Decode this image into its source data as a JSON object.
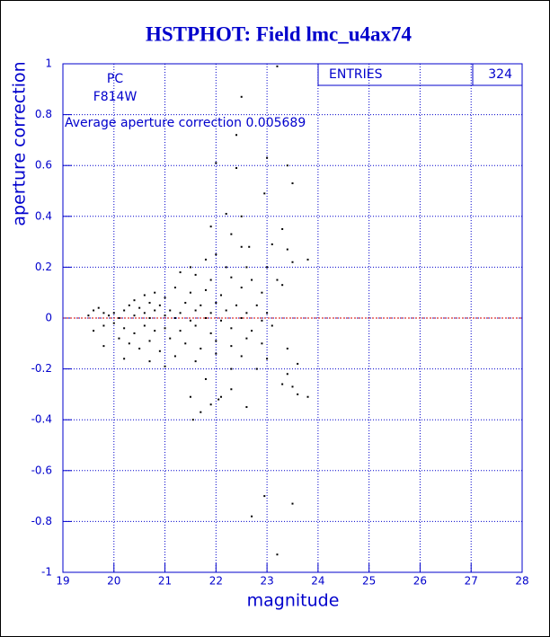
{
  "chart_data": {
    "type": "scatter",
    "title": "HSTPHOT: Field lmc_u4ax74",
    "xlabel": "magnitude",
    "ylabel": "aperture correction",
    "annotations": [
      "PC",
      "F814W",
      "Average aperture correction 0.005689"
    ],
    "stats": {
      "label": "ENTRIES",
      "value": 324
    },
    "xlim": [
      19,
      28
    ],
    "ylim": [
      -1,
      1
    ],
    "xticks": [
      19,
      20,
      21,
      22,
      23,
      24,
      25,
      26,
      27,
      28
    ],
    "yticks": [
      -1,
      -0.8,
      -0.6,
      -0.4,
      -0.2,
      0,
      0.2,
      0.4,
      0.6,
      0.8,
      1
    ],
    "grid": true,
    "series": [
      {
        "color": "#000000",
        "x": [
          23.2,
          22.5,
          22.4,
          23.0,
          22.0,
          22.4,
          23.4,
          23.5,
          22.95,
          22.2,
          22.5,
          21.9,
          22.3,
          23.3,
          23.4,
          22.5,
          22.65,
          23.1,
          23.8,
          23.5,
          21.5,
          21.8,
          22.0,
          22.2,
          22.6,
          23.0,
          21.3,
          21.6,
          21.9,
          22.3,
          22.7,
          23.2,
          21.2,
          21.5,
          21.8,
          22.1,
          22.5,
          22.9,
          23.3,
          20.6,
          20.8,
          21.0,
          20.4,
          20.7,
          21.4,
          21.7,
          22.0,
          22.4,
          22.8,
          19.6,
          19.8,
          19.7,
          20.0,
          20.2,
          20.3,
          20.5,
          20.6,
          20.8,
          20.9,
          21.1,
          21.3,
          21.6,
          21.9,
          22.2,
          22.6,
          23.0,
          19.5,
          19.9,
          20.1,
          20.4,
          20.7,
          21.0,
          21.2,
          21.5,
          21.8,
          22.1,
          22.5,
          22.9,
          19.6,
          19.8,
          20.0,
          20.2,
          20.4,
          20.6,
          20.8,
          21.0,
          21.3,
          21.6,
          21.9,
          22.3,
          22.7,
          23.1,
          19.8,
          20.1,
          20.3,
          20.5,
          20.7,
          20.9,
          21.1,
          21.4,
          21.7,
          22.0,
          22.3,
          22.6,
          22.9,
          20.2,
          20.7,
          21.2,
          21.6,
          22.0,
          22.5,
          23.0,
          23.4,
          23.6,
          21.0,
          22.8,
          22.3,
          22.3,
          21.8,
          23.3,
          23.5,
          23.6,
          23.8,
          23.4,
          21.5,
          22.1,
          22.05,
          21.7,
          21.9,
          22.6,
          21.55,
          22.95,
          23.5,
          22.7,
          23.2
        ],
        "values": [
          0.99,
          0.87,
          0.72,
          0.63,
          0.61,
          0.59,
          0.6,
          0.53,
          0.49,
          0.41,
          0.4,
          0.36,
          0.33,
          0.35,
          0.27,
          0.28,
          0.28,
          0.29,
          0.23,
          0.22,
          0.2,
          0.23,
          0.25,
          0.2,
          0.2,
          0.2,
          0.18,
          0.17,
          0.15,
          0.16,
          0.15,
          0.15,
          0.12,
          0.1,
          0.11,
          0.09,
          0.12,
          0.1,
          0.13,
          0.09,
          0.1,
          0.08,
          0.07,
          0.06,
          0.06,
          0.05,
          0.06,
          0.05,
          0.05,
          0.03,
          0.02,
          0.04,
          0.02,
          0.03,
          0.05,
          0.04,
          0.02,
          0.03,
          0.05,
          0.03,
          0.02,
          0.03,
          0.02,
          0.03,
          0.02,
          0.02,
          0.01,
          0.01,
          0.0,
          0.01,
          0.0,
          0.01,
          0.0,
          -0.01,
          0.0,
          -0.01,
          0.0,
          -0.01,
          -0.05,
          -0.03,
          -0.02,
          -0.04,
          -0.06,
          -0.03,
          -0.05,
          -0.04,
          -0.05,
          -0.03,
          -0.06,
          -0.04,
          -0.05,
          -0.03,
          -0.11,
          -0.08,
          -0.1,
          -0.12,
          -0.09,
          -0.13,
          -0.08,
          -0.1,
          -0.12,
          -0.09,
          -0.11,
          -0.08,
          -0.1,
          -0.16,
          -0.17,
          -0.15,
          -0.17,
          -0.14,
          -0.15,
          -0.16,
          -0.12,
          -0.18,
          -0.19,
          -0.2,
          -0.2,
          -0.28,
          -0.24,
          -0.26,
          -0.27,
          -0.3,
          -0.31,
          -0.22,
          -0.31,
          -0.31,
          -0.32,
          -0.37,
          -0.34,
          -0.35,
          -0.4,
          -0.7,
          -0.73,
          -0.78,
          -0.93
        ]
      }
    ]
  }
}
